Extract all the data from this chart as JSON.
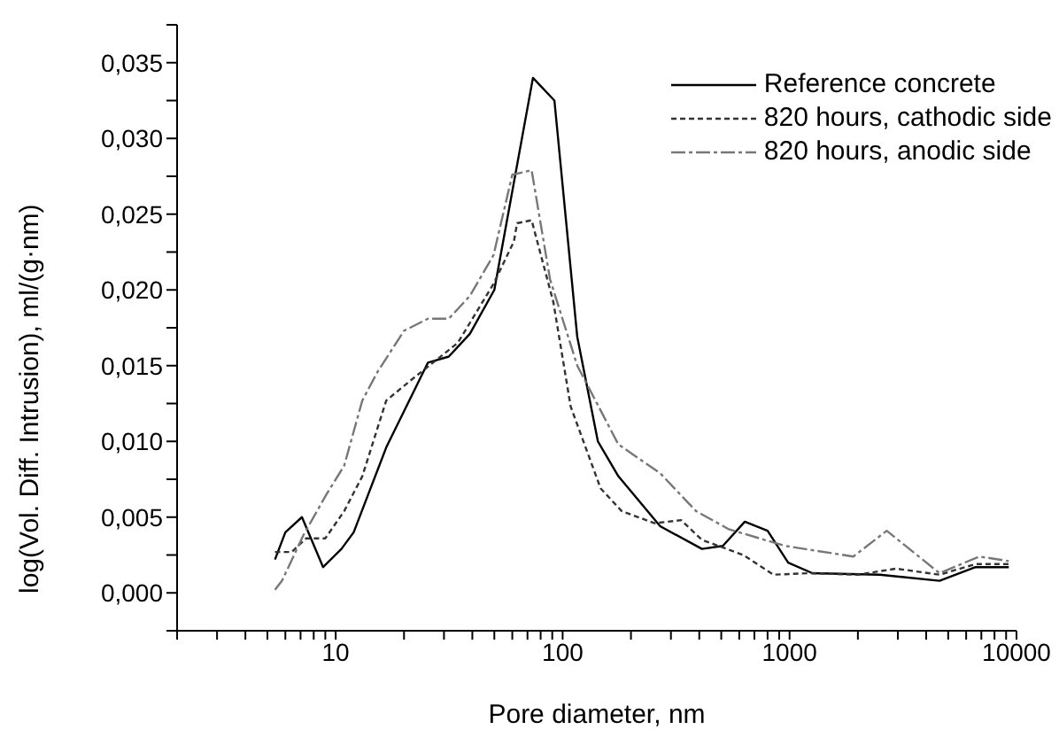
{
  "chart_data": {
    "type": "line",
    "xlabel": "Pore diameter, nm",
    "ylabel": "log(Vol. Diff. Intrusion), ml/(g·nm)",
    "log": "x",
    "legend": "top right",
    "marker": "none",
    "xlim": [
      2,
      10000
    ],
    "ylim": [
      -0.0025,
      0.0375
    ],
    "xticks": [
      {
        "value": 2,
        "label": null
      },
      {
        "value": 3,
        "label": null
      },
      {
        "value": 4,
        "label": null
      },
      {
        "value": 5,
        "label": null
      },
      {
        "value": 6,
        "label": null
      },
      {
        "value": 7,
        "label": null
      },
      {
        "value": 8,
        "label": null
      },
      {
        "value": 9,
        "label": null
      },
      10,
      {
        "value": 20,
        "label": null
      },
      {
        "value": 30,
        "label": null
      },
      {
        "value": 40,
        "label": null
      },
      {
        "value": 50,
        "label": null
      },
      {
        "value": 60,
        "label": null
      },
      {
        "value": 70,
        "label": null
      },
      {
        "value": 80,
        "label": null
      },
      {
        "value": 90,
        "label": null
      },
      100,
      {
        "value": 200,
        "label": null
      },
      {
        "value": 300,
        "label": null
      },
      {
        "value": 400,
        "label": null
      },
      {
        "value": 500,
        "label": null
      },
      {
        "value": 600,
        "label": null
      },
      {
        "value": 700,
        "label": null
      },
      {
        "value": 800,
        "label": null
      },
      {
        "value": 900,
        "label": null
      },
      1000,
      {
        "value": 2000,
        "label": null
      },
      {
        "value": 3000,
        "label": null
      },
      {
        "value": 4000,
        "label": null
      },
      {
        "value": 5000,
        "label": null
      },
      {
        "value": 6000,
        "label": null
      },
      {
        "value": 7000,
        "label": null
      },
      {
        "value": 8000,
        "label": null
      },
      {
        "value": 9000,
        "label": null
      },
      10000
    ],
    "yticks": [
      {
        "value": -0.0025,
        "label": null
      },
      {
        "value": 0,
        "label": "0,000"
      },
      {
        "value": 0.0025,
        "label": null
      },
      {
        "value": 0.005,
        "label": "0,005"
      },
      {
        "value": 0.0075,
        "label": null
      },
      {
        "value": 0.01,
        "label": "0,010"
      },
      {
        "value": 0.0125,
        "label": null
      },
      {
        "value": 0.015,
        "label": "0,015"
      },
      {
        "value": 0.0175,
        "label": null
      },
      {
        "value": 0.02,
        "label": "0,020"
      },
      {
        "value": 0.0225,
        "label": null
      },
      {
        "value": 0.025,
        "label": "0,025"
      },
      {
        "value": 0.0275,
        "label": null
      },
      {
        "value": 0.03,
        "label": "0,030"
      },
      {
        "value": 0.0325,
        "label": null
      },
      {
        "value": 0.035,
        "label": "0,035"
      },
      {
        "value": 0.0375,
        "label": null
      }
    ],
    "series": [
      {
        "name": "Reference concrete",
        "color": "#000000",
        "line_style": "solid",
        "x": [
          5.4,
          6.0,
          7.1,
          8.8,
          10.6,
          12,
          16.7,
          25.5,
          31.5,
          39,
          50,
          74,
          92,
          116,
          143,
          176,
          269,
          411,
          508,
          635,
          800,
          986,
          1260,
          2500,
          4580,
          6600,
          9250
        ],
        "values": [
          0.0022,
          0.004,
          0.005,
          0.0017,
          0.0029,
          0.004,
          0.0096,
          0.0152,
          0.0156,
          0.0171,
          0.02,
          0.034,
          0.0325,
          0.0169,
          0.01,
          0.0077,
          0.0044,
          0.0029,
          0.0031,
          0.0047,
          0.0041,
          0.002,
          0.0013,
          0.0012,
          0.0008,
          0.0017,
          0.0017
        ]
      },
      {
        "name": "820 hours, cathodic side",
        "color": "#333333",
        "line_style": "dotted",
        "x": [
          5.4,
          6.4,
          7.4,
          9.0,
          10.9,
          13.1,
          16.7,
          21.3,
          34.5,
          49.6,
          61,
          63,
          73,
          91,
          108.5,
          147,
          182,
          254,
          333,
          411,
          625,
          850,
          1220,
          2000,
          2950,
          4580,
          6600,
          9250
        ],
        "values": [
          0.0027,
          0.0027,
          0.0036,
          0.0036,
          0.0054,
          0.0077,
          0.0127,
          0.014,
          0.0165,
          0.0204,
          0.0232,
          0.0244,
          0.0246,
          0.0192,
          0.0123,
          0.0069,
          0.0054,
          0.0046,
          0.0048,
          0.0035,
          0.0025,
          0.0012,
          0.0013,
          0.0012,
          0.0016,
          0.0012,
          0.0019,
          0.0019
        ]
      },
      {
        "name": "820 hours, anodic side",
        "color": "#777777",
        "line_style": "dashed",
        "x": [
          5.4,
          5.8,
          7.2,
          9.1,
          10.9,
          13.1,
          15.3,
          20,
          25.5,
          31.5,
          39,
          49.6,
          60,
          73,
          88,
          116,
          176,
          269,
          387,
          540,
          955,
          1910,
          2680,
          4580,
          6850,
          9250
        ],
        "values": [
          0.0002,
          0.0008,
          0.0038,
          0.0065,
          0.0084,
          0.0127,
          0.0146,
          0.0173,
          0.0181,
          0.0181,
          0.0196,
          0.0223,
          0.0276,
          0.0279,
          0.0207,
          0.015,
          0.0098,
          0.0079,
          0.0054,
          0.0042,
          0.0031,
          0.0024,
          0.0041,
          0.0013,
          0.0024,
          0.0021
        ]
      }
    ]
  }
}
